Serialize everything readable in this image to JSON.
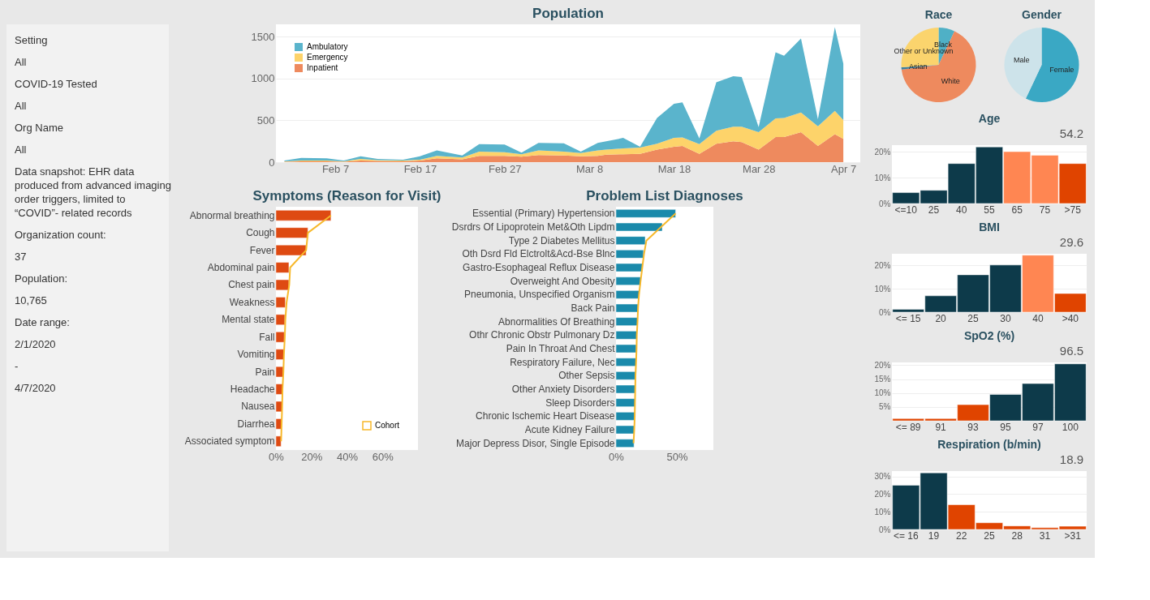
{
  "chart_data": [
    {
      "type": "other",
      "annotations": [
        "Setting",
        "All",
        "COVID-19 Tested",
        "All",
        "Org Name",
        "All",
        "Data snapshot:  EHR data produced from advanced imaging order triggers, limited to “COVID”- related records",
        "Organization count:",
        "37",
        "Population:",
        "10,765",
        "Date range:",
        "2/1/2020",
        "-",
        "4/7/2020"
      ]
    },
    {
      "type": "area",
      "title": "Population",
      "stacked": true,
      "legend": "top left",
      "grid": "y",
      "x": [
        "2020-02-01",
        "2020-02-03",
        "2020-02-06",
        "2020-02-08",
        "2020-02-10",
        "2020-02-12",
        "2020-02-15",
        "2020-02-17",
        "2020-02-19",
        "2020-02-22",
        "2020-02-24",
        "2020-02-27",
        "2020-02-29",
        "2020-03-02",
        "2020-03-05",
        "2020-03-07",
        "2020-03-09",
        "2020-03-10",
        "2020-03-12",
        "2020-03-14",
        "2020-03-16",
        "2020-03-18",
        "2020-03-19",
        "2020-03-21",
        "2020-03-23",
        "2020-03-25",
        "2020-03-26",
        "2020-03-28",
        "2020-03-30",
        "2020-03-31",
        "2020-04-02",
        "2020-04-04",
        "2020-04-06",
        "2020-04-07"
      ],
      "series": [
        {
          "name": "Inpatient",
          "color": "#ee8a5e",
          "values": [
            5,
            10,
            10,
            5,
            20,
            15,
            10,
            20,
            45,
            35,
            75,
            75,
            65,
            85,
            80,
            70,
            75,
            90,
            95,
            100,
            150,
            185,
            195,
            100,
            220,
            250,
            240,
            150,
            300,
            300,
            360,
            195,
            335,
            280
          ]
        },
        {
          "name": "Emergency",
          "color": "#fdd36a",
          "values": [
            5,
            10,
            10,
            5,
            20,
            10,
            10,
            10,
            30,
            20,
            50,
            45,
            30,
            55,
            45,
            40,
            65,
            60,
            70,
            75,
            70,
            105,
            100,
            115,
            155,
            175,
            185,
            210,
            225,
            230,
            235,
            235,
            280,
            225
          ]
        },
        {
          "name": "Ambulatory",
          "color": "#5ab4cc",
          "values": [
            10,
            30,
            25,
            10,
            30,
            15,
            10,
            40,
            65,
            25,
            90,
            90,
            20,
            90,
            100,
            15,
            90,
            100,
            125,
            10,
            310,
            410,
            420,
            70,
            580,
            605,
            595,
            60,
            790,
            745,
            885,
            85,
            1000,
            675
          ]
        }
      ],
      "xlim": [
        "2020-01-31",
        "2020-04-09"
      ],
      "xticks": [
        {
          "value": "2020-02-07",
          "label": "Feb 7"
        },
        {
          "value": "2020-02-17",
          "label": "Feb 17"
        },
        {
          "value": "2020-02-27",
          "label": "Feb 27"
        },
        {
          "value": "2020-03-08",
          "label": "Mar 8"
        },
        {
          "value": "2020-03-18",
          "label": "Mar 18"
        },
        {
          "value": "2020-03-28",
          "label": "Mar 28"
        },
        {
          "value": "2020-04-07",
          "label": "Apr 7"
        }
      ],
      "ylim": [
        0,
        1650
      ],
      "yticks": [
        0,
        500,
        1000,
        1500
      ]
    },
    {
      "type": "bar",
      "orientation": "horizontal",
      "title": "Symptoms (Reason for Visit)",
      "legend": "bottom right",
      "categories": [
        "Abnormal breathing",
        "Cough",
        "Fever",
        "Abdominal pain",
        "Chest pain",
        "Weakness",
        "Mental state",
        "Fall",
        "Vomiting",
        "Pain",
        "Headache",
        "Nausea",
        "Diarrhea",
        "Associated symptom"
      ],
      "series": [
        {
          "color": "#de4a12",
          "values": [
            31,
            18,
            17,
            7.3,
            7.3,
            5.3,
            5,
            4.7,
            4.4,
            4.1,
            3.9,
            3.5,
            3.2,
            2.9
          ]
        },
        {
          "name": "Cohort",
          "type": "line",
          "color": "#f7b82a",
          "values": [
            31,
            18,
            17,
            8,
            7.5,
            6,
            5.3,
            5,
            4.5,
            4.2,
            3.7,
            3.5,
            3.2,
            2.9
          ]
        }
      ],
      "xlim": [
        0,
        80
      ],
      "xticks": [
        {
          "value": 0,
          "label": "0%"
        },
        {
          "value": 20,
          "label": "20%"
        },
        {
          "value": 40,
          "label": "40%"
        },
        {
          "value": 60,
          "label": "60%"
        }
      ]
    },
    {
      "type": "bar",
      "orientation": "horizontal",
      "title": "Problem List Diagnoses",
      "categories": [
        "Essential (Primary) Hypertension",
        "Dsrdrs Of Lipoprotein Met&Oth Lipdm",
        "Type 2 Diabetes Mellitus",
        "Oth Dsrd Fld Elctrolt&Acd-Bse Blnc",
        "Gastro-Esophageal Reflux Disease",
        "Overweight And Obesity",
        "Pneumonia, Unspecified Organism",
        "Back Pain",
        "Abnormalities Of Breathing",
        "Othr Chronic Obstr Pulmonary Dz",
        "Pain In Throat And Chest",
        "Respiratory Failure, Nec",
        "Other Sepsis",
        "Other Anxiety Disorders",
        "Sleep Disorders",
        "Chronic Ischemic Heart Disease",
        "Acute Kidney Failure",
        "Major Depress Disor, Single Episode"
      ],
      "series": [
        {
          "color": "#1a8aab",
          "values": [
            49,
            38,
            24,
            22.6,
            21.6,
            20.2,
            19.1,
            18.1,
            17.7,
            17.1,
            16.7,
            16.5,
            16.3,
            16,
            15.8,
            15.6,
            15.2,
            14.8
          ]
        },
        {
          "type": "line",
          "color": "#f7b82a",
          "values": [
            49,
            37,
            25,
            23,
            21.6,
            20.2,
            18.9,
            18.1,
            17.7,
            17.1,
            16.9,
            16.5,
            16,
            15.8,
            15.6,
            15.4,
            15,
            14.4
          ]
        }
      ],
      "xlim": [
        0,
        80
      ],
      "xticks": [
        {
          "value": 0,
          "label": "0%"
        },
        {
          "value": 50,
          "label": "50%"
        }
      ]
    },
    {
      "type": "pie",
      "title": "Race",
      "categories": [
        "Black",
        "White",
        "Asian",
        "Other or Unknown"
      ],
      "values": [
        7,
        66,
        1,
        26
      ],
      "colors": [
        "#4fb0c6",
        "#ee8a5e",
        "#3c7fa0",
        "#fbd46d"
      ]
    },
    {
      "type": "pie",
      "title": "Gender",
      "categories": [
        "Female",
        "Male"
      ],
      "values": [
        57,
        43
      ],
      "colors": [
        "#3aa8c4",
        "#cde3ea"
      ]
    },
    {
      "type": "bar",
      "title": "Age",
      "annotations": [
        "54.2"
      ],
      "grid": "y",
      "categories": [
        "<=10",
        "25",
        "40",
        "55",
        "65",
        "75",
        ">75"
      ],
      "values": [
        4.2,
        5.1,
        15.4,
        21.8,
        20,
        18.6,
        15.4
      ],
      "colors": [
        "#0d3a4a",
        "#0d3a4a",
        "#0d3a4a",
        "#0d3a4a",
        "#ff8652",
        "#ff8652",
        "#e04400"
      ],
      "ylim": [
        0,
        22.5
      ],
      "yticks": [
        {
          "value": 0,
          "label": "0%"
        },
        {
          "value": 10,
          "label": "10%"
        },
        {
          "value": 20,
          "label": "20%"
        }
      ]
    },
    {
      "type": "bar",
      "title": "BMI",
      "annotations": [
        "29.6"
      ],
      "grid": "y",
      "categories": [
        "<= 15",
        "20",
        "25",
        "30",
        "40",
        ">40"
      ],
      "values": [
        1.2,
        7,
        16,
        20.2,
        24.4,
        8
      ],
      "colors": [
        "#0d3a4a",
        "#0d3a4a",
        "#0d3a4a",
        "#0d3a4a",
        "#ff8652",
        "#e04400"
      ],
      "ylim": [
        0,
        25
      ],
      "yticks": [
        {
          "value": 0,
          "label": "0%"
        },
        {
          "value": 10,
          "label": "10%"
        },
        {
          "value": 20,
          "label": "20%"
        }
      ]
    },
    {
      "type": "bar",
      "title": "SpO2 (%)",
      "annotations": [
        "96.5"
      ],
      "grid": "y",
      "categories": [
        "<= 89",
        "91",
        "93",
        "95",
        "97",
        "100"
      ],
      "values": [
        0.8,
        0.8,
        5.8,
        9.5,
        13.4,
        20.5
      ],
      "colors": [
        "#e04400",
        "#e04400",
        "#e04400",
        "#0d3a4a",
        "#0d3a4a",
        "#0d3a4a"
      ],
      "ylim": [
        0,
        21
      ],
      "yticks": [
        {
          "value": 5,
          "label": "5%"
        },
        {
          "value": 10,
          "label": "10%"
        },
        {
          "value": 15,
          "label": "15%"
        },
        {
          "value": 20,
          "label": "20%"
        }
      ]
    },
    {
      "type": "bar",
      "title": "Respiration (b/min)",
      "annotations": [
        "18.9"
      ],
      "grid": "y",
      "categories": [
        "<= 16",
        "19",
        "22",
        "25",
        "28",
        "31",
        ">31"
      ],
      "values": [
        25,
        32,
        14,
        3.8,
        2,
        1,
        1.8
      ],
      "colors": [
        "#0d3a4a",
        "#0d3a4a",
        "#e04400",
        "#e04400",
        "#e04400",
        "#e04400",
        "#e04400"
      ],
      "ylim": [
        0,
        33
      ],
      "yticks": [
        {
          "value": 0,
          "label": "0%"
        },
        {
          "value": 10,
          "label": "10%"
        },
        {
          "value": 20,
          "label": "20%"
        },
        {
          "value": 30,
          "label": "30%"
        }
      ]
    }
  ]
}
